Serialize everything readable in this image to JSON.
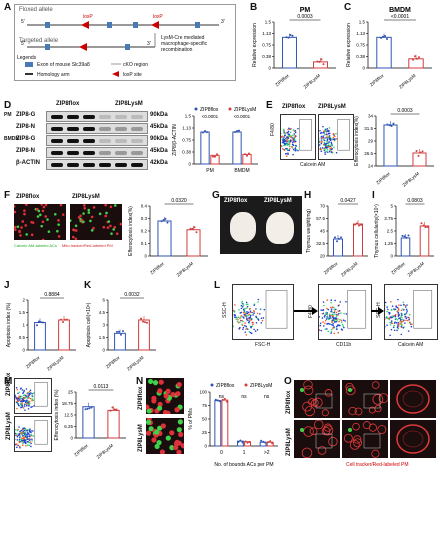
{
  "panels": {
    "A": {
      "label": "A",
      "floxed": "Floxed allele",
      "targeted": "Targeted allele",
      "loxp": "loxP",
      "five": "5'",
      "three": "3'",
      "lysm_note": "LysM-Cre mediated macrophage-specific recombination",
      "legends": "Legends",
      "exon": "Exon of mouse Slc39a8",
      "cko": "cKO region",
      "homology": "Homology arm",
      "loxp_site": "loxP site"
    },
    "B": {
      "label": "B",
      "title": "PM",
      "ylabel": "Relative expression",
      "p": "0.0003",
      "x": [
        "ZIP8flox",
        "ZIP8LysM"
      ]
    },
    "C": {
      "label": "C",
      "title": "BMDM",
      "ylabel": "Relative expression",
      "p": "<0.0001",
      "x": [
        "ZIP8flox",
        "ZIP8LysM"
      ]
    },
    "D": {
      "label": "D",
      "group1": "ZIP8flox",
      "group2": "ZIP8LysM",
      "rows": [
        {
          "left": "ZIP8-G",
          "right": "90kDa",
          "side": "PM"
        },
        {
          "left": "ZIP8-N",
          "right": "45kDa",
          "side": ""
        },
        {
          "left": "ZIP8-G",
          "right": "90kDa",
          "side": "BMDM"
        },
        {
          "left": "ZIP8-N",
          "right": "45kDa",
          "side": ""
        },
        {
          "left": "β-ACTIN",
          "right": "42kDa",
          "side": ""
        }
      ],
      "legend1": "ZIP8flox",
      "legend2": "ZIP8LysM",
      "p1": "<0.0001",
      "p2": "<0.0001",
      "ylabel": "ZIP8/β-ACTIN",
      "x": [
        "PM",
        "BMDM"
      ]
    },
    "E": {
      "label": "E",
      "g1": "ZIP8flox",
      "g2": "ZIP8LysM",
      "xaxis": "Calcein AM",
      "yaxis": "F4/80",
      "ylabel": "Efferocytosis index(%)",
      "p": "0.0003",
      "x": [
        "ZIP8flox",
        "ZIP8LysM"
      ],
      "yticks": [
        "24",
        "26",
        "28",
        "30",
        "32",
        "34"
      ]
    },
    "F": {
      "label": "F",
      "g1": "ZIP8flox",
      "g2": "ZIP8LysM",
      "cap1": "Calcein AM-labeled ACs",
      "cap2": "Mito tracker/Red-labeled PM",
      "ylabel": "Efferocytosis index(%)",
      "p": "0.0320",
      "x": [
        "ZIP8flox",
        "ZIP8LysM"
      ]
    },
    "G": {
      "label": "G",
      "g1": "ZIP8flox",
      "g2": "ZIP8LysM"
    },
    "H": {
      "label": "H",
      "ylabel": "Thymus weight(mg)",
      "p": "0.0427",
      "x": [
        "ZIP8flox",
        "ZIP8LysM"
      ]
    },
    "I": {
      "label": "I",
      "ylabel": "Thymus cellularity(×10⁷)",
      "p": "0.0803",
      "x": [
        "ZIP8flox",
        "ZIP8LysM"
      ]
    },
    "J": {
      "label": "J",
      "ylabel": "Apoptosis index (%)",
      "p": "0.8884",
      "x": [
        "ZIP8flox",
        "ZIP8LysM"
      ]
    },
    "K": {
      "label": "K",
      "ylabel": "Apoptosis cell(×10⁶)",
      "p": "0.0032",
      "x": [
        "ZIP8flox",
        "ZIP8LysM"
      ]
    },
    "L": {
      "label": "L",
      "ax1x": "FSC-H",
      "ax1y": "SSC-H",
      "ax2x": "CD11b",
      "ax2y": "F4/80",
      "ax3x": "Calcein AM",
      "ax3y": "SSC-H"
    },
    "M": {
      "label": "M",
      "g1": "ZIP8flox",
      "g2": "ZIP8LysM",
      "ylabel": "Efferocytosis index (%)",
      "p": "0.0113",
      "x": [
        "ZIP8flox",
        "ZIP8LysM"
      ]
    },
    "N": {
      "label": "N",
      "g1": "ZIP8flox",
      "g2": "ZIP8LysM",
      "legend1": "ZIP8flox",
      "legend2": "ZIP8LysM",
      "ylabel": "% of PMs",
      "xlabel": "No. of bounds ACs per PM",
      "cats": [
        "0",
        "1",
        ">2"
      ],
      "ns": "ns"
    },
    "O": {
      "label": "O",
      "g1": "ZIP8flox",
      "g2": "ZIP8LysM",
      "cap": "Cell tracker/Red-labeled PM"
    }
  },
  "chart_data": [
    {
      "panel": "B",
      "type": "bar",
      "title": "PM",
      "categories": [
        "ZIP8flox",
        "ZIP8LysM"
      ],
      "values": [
        1.0,
        0.2
      ],
      "ylim": [
        0,
        1.5
      ],
      "ylabel": "Relative expression"
    },
    {
      "panel": "C",
      "type": "bar",
      "title": "BMDM",
      "categories": [
        "ZIP8flox",
        "ZIP8LysM"
      ],
      "values": [
        1.0,
        0.3
      ],
      "ylim": [
        0,
        1.5
      ],
      "ylabel": "Relative expression"
    },
    {
      "panel": "D",
      "type": "bar",
      "categories": [
        "PM",
        "BMDM"
      ],
      "series": [
        {
          "name": "ZIP8flox",
          "values": [
            1.0,
            1.0
          ]
        },
        {
          "name": "ZIP8LysM",
          "values": [
            0.27,
            0.3
          ]
        }
      ],
      "ylim": [
        0,
        1.5
      ],
      "ylabel": "ZIP8/β-ACTIN"
    },
    {
      "panel": "E",
      "type": "bar",
      "categories": [
        "ZIP8flox",
        "ZIP8LysM"
      ],
      "values": [
        32.2,
        26.6
      ],
      "ylim": [
        24,
        34
      ],
      "ylabel": "Efferocytosis index(%)"
    },
    {
      "panel": "F",
      "type": "bar",
      "categories": [
        "ZIP8flox",
        "ZIP8LysM"
      ],
      "values": [
        0.28,
        0.21
      ],
      "ylim": [
        0,
        0.4
      ],
      "ylabel": "Efferocytosis index(%)"
    },
    {
      "panel": "H",
      "type": "bar",
      "categories": [
        "ZIP8flox",
        "ZIP8LysM"
      ],
      "values": [
        37,
        52
      ],
      "ylim": [
        20,
        70
      ],
      "ylabel": "Thymus weight(mg)"
    },
    {
      "panel": "I",
      "type": "bar",
      "categories": [
        "ZIP8flox",
        "ZIP8LysM"
      ],
      "values": [
        1.8,
        3.0
      ],
      "ylim": [
        0,
        5
      ],
      "ylabel": "Thymus cellularity(×10⁷)"
    },
    {
      "panel": "J",
      "type": "bar",
      "categories": [
        "ZIP8flox",
        "ZIP8LysM"
      ],
      "values": [
        1.1,
        1.2
      ],
      "ylim": [
        0,
        2
      ],
      "ylabel": "Apoptosis index (%)"
    },
    {
      "panel": "K",
      "type": "bar",
      "categories": [
        "ZIP8flox",
        "ZIP8LysM"
      ],
      "values": [
        2.0,
        3.6
      ],
      "ylim": [
        0,
        6
      ],
      "ylabel": "Apoptosis cell(×10⁶)"
    },
    {
      "panel": "M",
      "type": "bar",
      "categories": [
        "ZIP8flox",
        "ZIP8LysM"
      ],
      "values": [
        17.0,
        15.0
      ],
      "ylim": [
        0,
        25
      ],
      "ylabel": "Efferocytosis index (%)"
    },
    {
      "panel": "N",
      "type": "bar",
      "categories": [
        "0",
        "1",
        ">2"
      ],
      "series": [
        {
          "name": "ZIP8flox",
          "values": [
            84,
            9,
            7
          ]
        },
        {
          "name": "ZIP8LysM",
          "values": [
            85,
            8,
            7
          ]
        }
      ],
      "ylim": [
        0,
        100
      ],
      "ylabel": "% of PMs"
    }
  ]
}
